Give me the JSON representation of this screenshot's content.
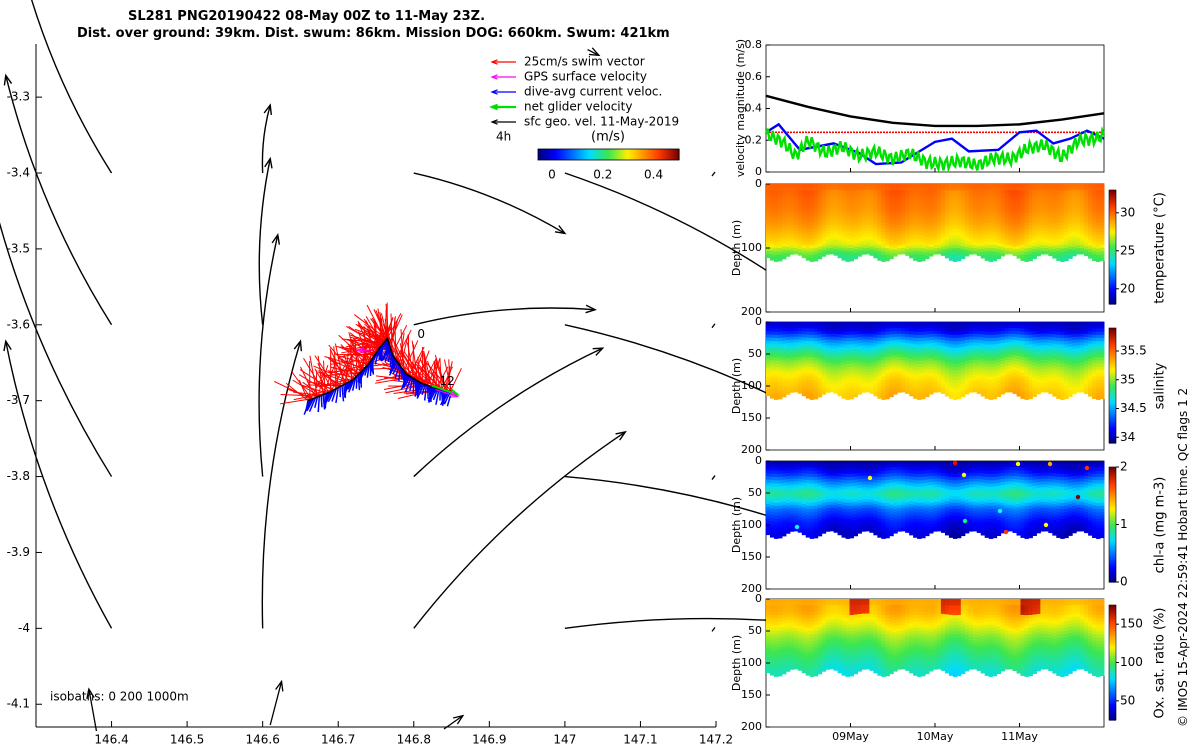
{
  "header": {
    "title_line1": "SL281 PNG20190422 08-May 00Z to 11-May 23Z.",
    "title_line2": "Dist. over ground: 39km. Dist. swum: 86km. Mission DOG: 660km. Swum: 421km"
  },
  "footer": {
    "credit": "© IMOS 15-Apr-2024 22:59:41 Hobart time. QC flags 1  2"
  },
  "chart_data": [
    {
      "id": "map",
      "type": "vector-map",
      "xlim": [
        146.3,
        147.2
      ],
      "ylim": [
        -4.13,
        -3.23
      ],
      "xticks": [
        146.4,
        146.5,
        146.6,
        146.7,
        146.8,
        146.9,
        147,
        147.1,
        147.2
      ],
      "xtick_labels": [
        "146.4",
        "146.5",
        "146.6",
        "146.7",
        "146.8",
        "146.9",
        "147",
        "147.1",
        "147.2"
      ],
      "yticks": [
        -3.3,
        -3.4,
        -3.5,
        -3.6,
        -3.7,
        -3.8,
        -3.9,
        -4.0,
        -4.1
      ],
      "ytick_labels": [
        "-3.3",
        "-3.4",
        "-3.5",
        "-3.6",
        "-3.7",
        "-3.8",
        "-3.9",
        "-4",
        "-4.1"
      ],
      "legend": [
        {
          "label": "25cm/s swim vector",
          "color": "#ff0000"
        },
        {
          "label": "GPS surface velocity",
          "color": "#ff00ff"
        },
        {
          "label": "dive-avg current veloc.",
          "color": "#0000ff"
        },
        {
          "label": "net glider velocity",
          "color": "#00e000"
        },
        {
          "label": "sfc geo. vel. 11-May-2019",
          "color": "#000000"
        }
      ],
      "legend_time_label": "4h",
      "colorbar": {
        "label": "(m/s)",
        "ticks": [
          0,
          0.2,
          0.4
        ],
        "tick_labels": [
          "0",
          "0.2",
          "0.4"
        ],
        "range": [
          0,
          0.5
        ]
      },
      "isobaths_label": "isobaths: 0   200  1000m",
      "track_labels": [
        "0",
        "12"
      ],
      "track": [
        [
          146.66,
          -3.7
        ],
        [
          146.69,
          -3.688
        ],
        [
          146.72,
          -3.672
        ],
        [
          146.74,
          -3.652
        ],
        [
          146.755,
          -3.63
        ],
        [
          146.765,
          -3.618
        ],
        [
          146.772,
          -3.64
        ],
        [
          146.79,
          -3.665
        ],
        [
          146.81,
          -3.677
        ],
        [
          146.83,
          -3.684
        ],
        [
          146.85,
          -3.688
        ]
      ],
      "sfc_vectors": [
        {
          "x": 146.4,
          "y": -3.4,
          "u": -0.12,
          "v": 0.28
        },
        {
          "x": 146.6,
          "y": -3.4,
          "u": 0.01,
          "v": 0.09
        },
        {
          "x": 146.8,
          "y": -3.4,
          "u": 0.2,
          "v": -0.08
        },
        {
          "x": 147.0,
          "y": -3.4,
          "u": 0.34,
          "v": -0.18
        },
        {
          "x": 146.4,
          "y": -3.6,
          "u": -0.14,
          "v": 0.33
        },
        {
          "x": 146.6,
          "y": -3.6,
          "u": 0.01,
          "v": 0.22
        },
        {
          "x": 146.8,
          "y": -3.6,
          "u": 0.24,
          "v": 0.02
        },
        {
          "x": 147.0,
          "y": -3.6,
          "u": 0.38,
          "v": -0.15
        },
        {
          "x": 146.4,
          "y": -3.8,
          "u": -0.16,
          "v": 0.38
        },
        {
          "x": 146.6,
          "y": -3.8,
          "u": 0.02,
          "v": 0.32
        },
        {
          "x": 146.8,
          "y": -3.8,
          "u": 0.25,
          "v": 0.17
        },
        {
          "x": 147.0,
          "y": -3.8,
          "u": 0.4,
          "v": -0.1
        },
        {
          "x": 146.4,
          "y": -4.0,
          "u": -0.14,
          "v": 0.38
        },
        {
          "x": 146.6,
          "y": -4.0,
          "u": 0.05,
          "v": 0.38
        },
        {
          "x": 146.8,
          "y": -4.0,
          "u": 0.28,
          "v": 0.26
        },
        {
          "x": 147.0,
          "y": -4.0,
          "u": 0.44,
          "v": -0.01
        }
      ]
    },
    {
      "id": "velocity",
      "type": "line",
      "ylabel": "velocity magnitude (m/s)",
      "ylim": [
        0,
        0.8
      ],
      "yticks": [
        0,
        0.2,
        0.4,
        0.6,
        0.8
      ],
      "ytick_labels": [
        "0",
        "0.2",
        "0.4",
        "0.6",
        "0.8"
      ],
      "xlim": [
        0,
        4
      ],
      "series": [
        {
          "name": "sfc geo. vel.",
          "color": "#000000",
          "x": [
            0,
            0.5,
            1,
            1.5,
            2,
            2.5,
            3,
            3.5,
            4
          ],
          "values": [
            0.48,
            0.41,
            0.35,
            0.31,
            0.29,
            0.29,
            0.3,
            0.33,
            0.37
          ]
        },
        {
          "name": "swim vector",
          "color": "#ff0000",
          "x": [
            0,
            4
          ],
          "values": [
            0.25,
            0.25
          ]
        },
        {
          "name": "dive-avg current veloc.",
          "color": "#0000ff",
          "x": [
            0,
            0.15,
            0.4,
            0.8,
            1.1,
            1.3,
            1.6,
            2.0,
            2.2,
            2.4,
            2.75,
            3.0,
            3.2,
            3.4,
            3.6,
            3.8,
            4.0
          ],
          "values": [
            0.25,
            0.3,
            0.14,
            0.18,
            0.12,
            0.05,
            0.06,
            0.19,
            0.21,
            0.13,
            0.14,
            0.25,
            0.26,
            0.18,
            0.21,
            0.26,
            0.21
          ]
        },
        {
          "name": "net glider velocity",
          "color": "#00e000",
          "x": [
            0,
            0.2,
            0.35,
            0.5,
            0.7,
            0.9,
            1.1,
            1.3,
            1.5,
            1.7,
            1.9,
            2.1,
            2.3,
            2.5,
            2.7,
            2.9,
            3.1,
            3.3,
            3.5,
            3.7,
            3.9,
            4.0
          ],
          "values": [
            0.24,
            0.19,
            0.1,
            0.2,
            0.12,
            0.16,
            0.1,
            0.13,
            0.08,
            0.12,
            0.06,
            0.05,
            0.07,
            0.04,
            0.09,
            0.08,
            0.15,
            0.17,
            0.09,
            0.2,
            0.21,
            0.23
          ]
        }
      ]
    },
    {
      "id": "temperature",
      "type": "heatmap",
      "ylabel": "Depth (m)",
      "clabel": "temperature (°C)",
      "ylim": [
        200,
        0
      ],
      "yticks": [
        0,
        100,
        200
      ],
      "ytick_labels": [
        "0",
        "100",
        "200"
      ],
      "clim": [
        18,
        33
      ],
      "cticks": [
        20,
        25,
        30
      ],
      "ctick_labels": [
        "20",
        "25",
        "30"
      ],
      "max_depth": 115,
      "profile_depth": [
        0,
        20,
        40,
        60,
        80,
        95,
        105,
        115
      ],
      "profile_value": [
        30.2,
        29.8,
        29.5,
        29.0,
        28.2,
        27.5,
        26.0,
        25.0
      ]
    },
    {
      "id": "salinity",
      "type": "heatmap",
      "ylabel": "Depth (m)",
      "clabel": "salinity",
      "ylim": [
        200,
        0
      ],
      "yticks": [
        0,
        50,
        100,
        150,
        200
      ],
      "ytick_labels": [
        "0",
        "50",
        "100",
        "150",
        "200"
      ],
      "clim": [
        33.9,
        35.9
      ],
      "cticks": [
        34,
        34.5,
        35,
        35.5
      ],
      "ctick_labels": [
        "34",
        "34.5",
        "35",
        "35.5"
      ],
      "max_depth": 115,
      "profile_depth": [
        0,
        15,
        30,
        45,
        60,
        75,
        90,
        115
      ],
      "profile_value": [
        34.0,
        34.15,
        34.5,
        34.75,
        34.95,
        35.1,
        35.2,
        35.3
      ]
    },
    {
      "id": "chla",
      "type": "heatmap",
      "ylabel": "Depth (m)",
      "clabel": "chl-a (mg m-3)",
      "ylim": [
        200,
        0
      ],
      "yticks": [
        0,
        50,
        100,
        150,
        200
      ],
      "ytick_labels": [
        "0",
        "50",
        "100",
        "150",
        "200"
      ],
      "clim": [
        0,
        2
      ],
      "cticks": [
        0,
        1,
        2
      ],
      "ctick_labels": [
        "0",
        "1",
        "2"
      ],
      "max_depth": 115,
      "profile_depth": [
        0,
        20,
        35,
        50,
        60,
        75,
        95,
        115
      ],
      "profile_value": [
        0.05,
        0.3,
        0.6,
        0.85,
        0.75,
        0.45,
        0.25,
        0.15
      ]
    },
    {
      "id": "oxygen",
      "type": "heatmap",
      "ylabel": "Depth (m)",
      "clabel": "Ox. sat. ratio (%)",
      "ylim": [
        200,
        0
      ],
      "yticks": [
        0,
        50,
        100,
        150,
        200
      ],
      "ytick_labels": [
        "0",
        "50",
        "100",
        "150",
        "200"
      ],
      "clim": [
        25,
        175
      ],
      "cticks": [
        50,
        100,
        150
      ],
      "ctick_labels": [
        "50",
        "100",
        "150"
      ],
      "max_depth": 115,
      "profile_depth": [
        0,
        20,
        40,
        60,
        80,
        100,
        115
      ],
      "profile_value": [
        133,
        130,
        120,
        107,
        98,
        90,
        85
      ],
      "xtick_labels": [
        "09May",
        "10May",
        "11May"
      ],
      "xticks": [
        1,
        2,
        3
      ],
      "xlim": [
        0,
        4
      ]
    }
  ]
}
